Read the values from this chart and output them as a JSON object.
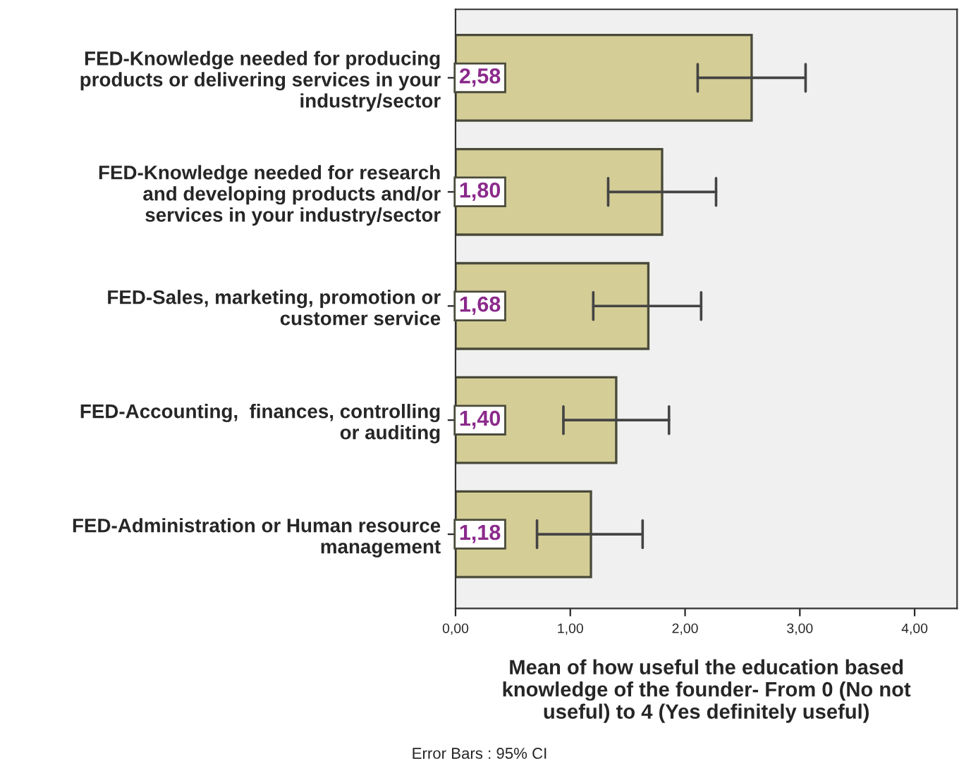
{
  "chart_data": {
    "type": "bar",
    "orientation": "horizontal",
    "categories": [
      "FED-Knowledge needed for producing\nproducts or delivering services in your\nindustry/sector",
      "FED-Knowledge needed for research\nand developing products and/or\nservices in your industry/sector",
      "FED-Sales, marketing, promotion or\ncustomer service",
      "FED-Accounting,  finances, controlling\nor auditing",
      "FED-Administration or Human resource\nmanagement"
    ],
    "values": [
      2.58,
      1.8,
      1.68,
      1.4,
      1.18
    ],
    "value_labels": [
      "2,58",
      "1,80",
      "1,68",
      "1,40",
      "1,18"
    ],
    "errors": [
      [
        2.11,
        3.05
      ],
      [
        1.33,
        2.27
      ],
      [
        1.2,
        2.14
      ],
      [
        0.94,
        1.86
      ],
      [
        0.71,
        1.63
      ]
    ],
    "color": "#d4cd96",
    "xlabel": "Mean of how useful the education based\nknowledge of the founder- From 0 (No not\nuseful) to 4 (Yes definitely useful)",
    "xlim": [
      0,
      4.37
    ],
    "xticks": [
      {
        "value": 0,
        "label": "0,00"
      },
      {
        "value": 1,
        "label": "1,00"
      },
      {
        "value": 2,
        "label": "2,00"
      },
      {
        "value": 3,
        "label": "3,00"
      },
      {
        "value": 4,
        "label": "4,00"
      }
    ],
    "annotations": [
      "Error Bars : 95% CI"
    ],
    "grid": false
  }
}
